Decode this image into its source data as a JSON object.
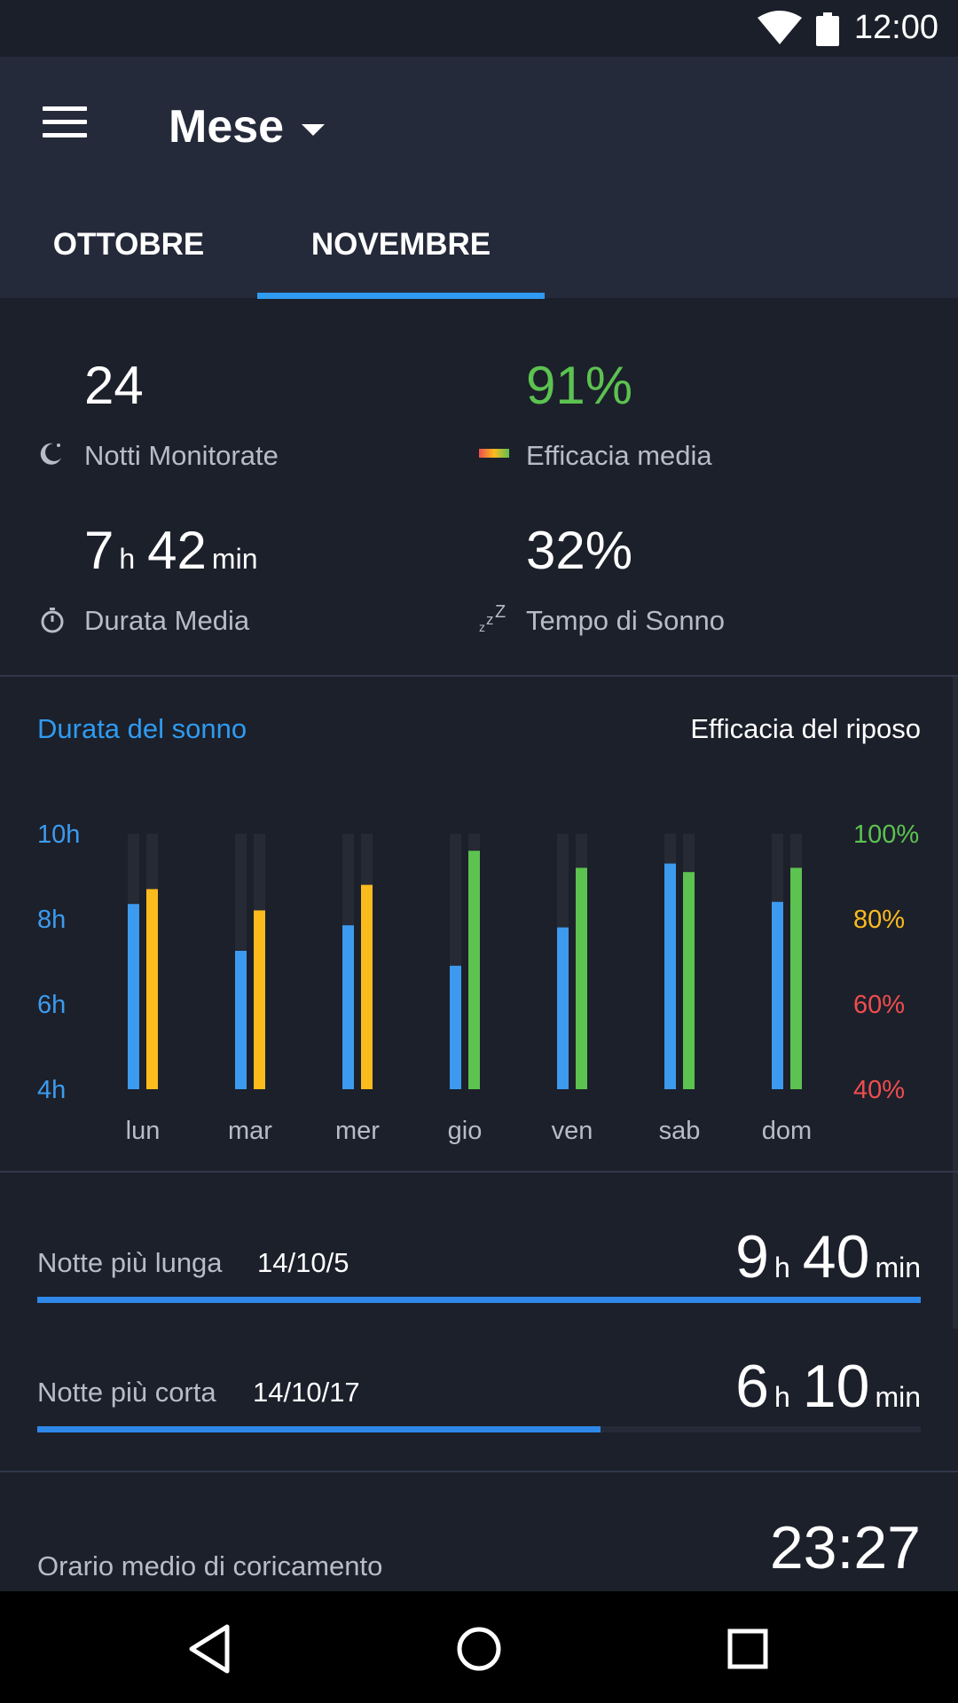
{
  "status_bar": {
    "time": "12:00"
  },
  "app_bar": {
    "period_label": "Mese",
    "tabs": [
      {
        "label": "OTTOBRE",
        "selected": false
      },
      {
        "label": "NOVEMBRE",
        "selected": true
      }
    ]
  },
  "stats": {
    "nights": {
      "value": "24",
      "label": "Notti Monitorate"
    },
    "efficiency": {
      "value": "91%",
      "label": "Efficacia media"
    },
    "duration": {
      "hours": "7",
      "h_unit": "h",
      "minutes": "42",
      "min_unit": "min",
      "label": "Durata Media"
    },
    "sleep_time": {
      "value": "32%",
      "label": "Tempo di Sonno"
    }
  },
  "chart": {
    "left_title": "Durata del sonno",
    "right_title": "Efficacia del riposo"
  },
  "chart_data": {
    "type": "bar",
    "categories": [
      "lun",
      "mar",
      "mer",
      "gio",
      "ven",
      "sab",
      "dom"
    ],
    "series": [
      {
        "axis": "left",
        "values": [
          8.35,
          7.25,
          7.85,
          6.9,
          7.8,
          9.3,
          8.4
        ]
      },
      {
        "axis": "right",
        "values": [
          87,
          82,
          88,
          96,
          92,
          91,
          92
        ]
      }
    ],
    "left_axis": {
      "ticks": [
        "10h",
        "8h",
        "6h",
        "4h"
      ],
      "range": [
        4,
        10
      ]
    },
    "right_axis": {
      "ticks": [
        "100%",
        "80%",
        "60%",
        "40%"
      ],
      "range": [
        40,
        100
      ]
    },
    "colors": {
      "duration": "#3c9bef",
      "eff_high": "#5cc250",
      "eff_mid": "#fbbb1d",
      "eff_low": "#ef4d4d",
      "track": "#262a34"
    }
  },
  "records": {
    "longest": {
      "label": "Notte più lunga",
      "date": "14/10/5",
      "hours": "9",
      "h_unit": "h",
      "minutes": "40",
      "min_unit": "min",
      "fill": 1.0
    },
    "shortest": {
      "label": "Notte più corta",
      "date": "14/10/17",
      "hours": "6",
      "h_unit": "h",
      "minutes": "10",
      "min_unit": "min",
      "fill": 0.638
    }
  },
  "bedtime": {
    "label": "Orario medio di coricamento",
    "value": "23:27"
  }
}
